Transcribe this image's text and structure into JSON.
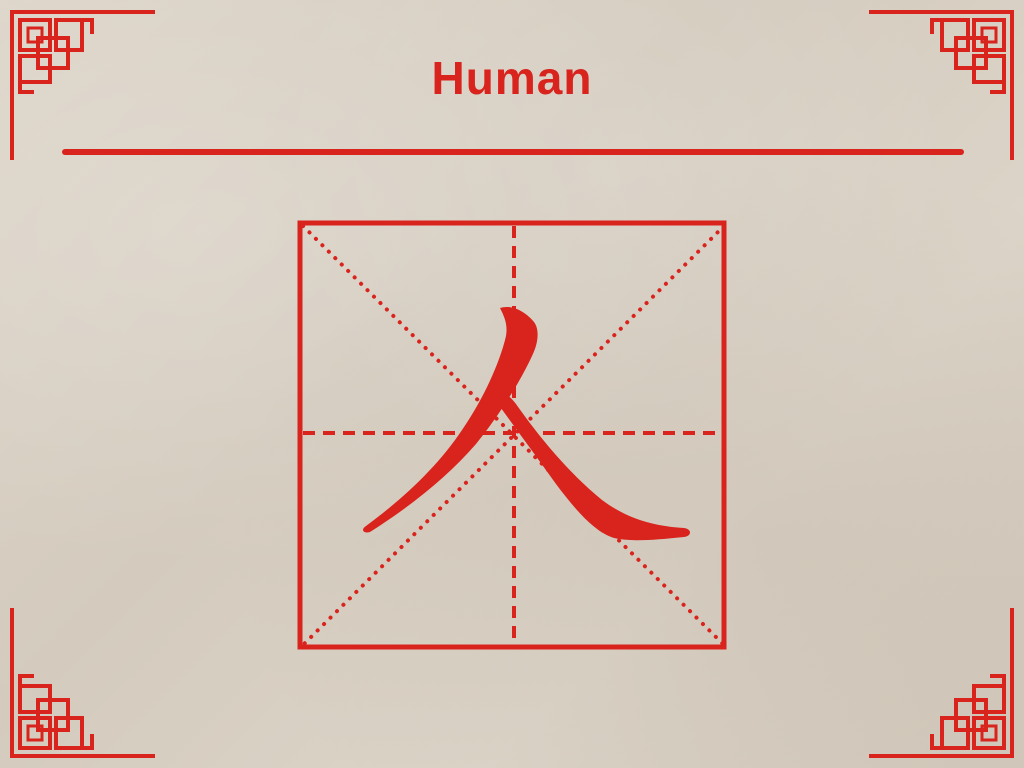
{
  "title": "Human",
  "accent_color": "#d9231d",
  "character_icon": "ren-character-icon",
  "corner_icon": "chinese-knot-corner-icon"
}
